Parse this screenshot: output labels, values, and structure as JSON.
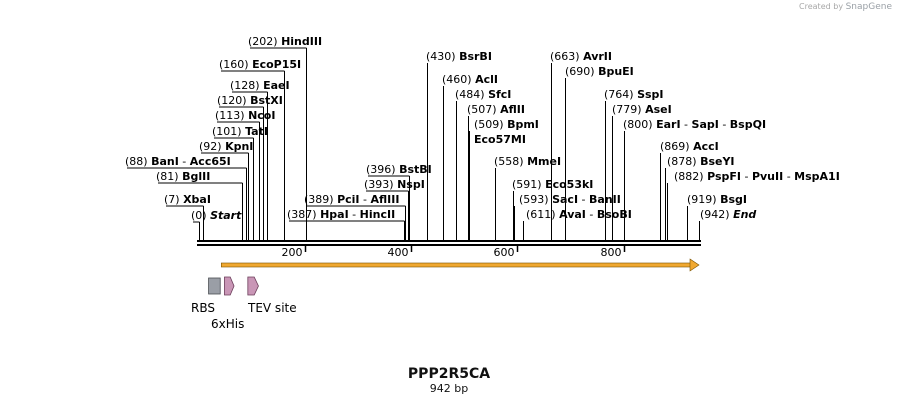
{
  "branding": {
    "created_by": "Created by",
    "product": "SnapGene"
  },
  "sequence": {
    "name": "PPP2R5CA",
    "length_label": "942 bp",
    "length_bp": 942
  },
  "sites": [
    {
      "pos": "(0)",
      "bp": 0,
      "names": [
        "Start"
      ],
      "italic": true
    },
    {
      "pos": "(7)",
      "bp": 7,
      "names": [
        "XbaI"
      ]
    },
    {
      "pos": "(81)",
      "bp": 81,
      "names": [
        "BglII"
      ]
    },
    {
      "pos": "(88)",
      "bp": 88,
      "names": [
        "BanI",
        "Acc65I"
      ]
    },
    {
      "pos": "(92)",
      "bp": 92,
      "names": [
        "KpnI"
      ]
    },
    {
      "pos": "(101)",
      "bp": 101,
      "names": [
        "TatI"
      ]
    },
    {
      "pos": "(113)",
      "bp": 113,
      "names": [
        "NcoI"
      ]
    },
    {
      "pos": "(120)",
      "bp": 120,
      "names": [
        "BstXI"
      ]
    },
    {
      "pos": "(128)",
      "bp": 128,
      "names": [
        "EaeI"
      ]
    },
    {
      "pos": "(160)",
      "bp": 160,
      "names": [
        "EcoP15I"
      ]
    },
    {
      "pos": "(202)",
      "bp": 202,
      "names": [
        "HindIII"
      ]
    },
    {
      "pos": "(387)",
      "bp": 387,
      "names": [
        "HpaI",
        "HincII"
      ]
    },
    {
      "pos": "(389)",
      "bp": 389,
      "names": [
        "PciI",
        "AflIII"
      ]
    },
    {
      "pos": "(393)",
      "bp": 393,
      "names": [
        "NspI"
      ]
    },
    {
      "pos": "(396)",
      "bp": 396,
      "names": [
        "BstBI"
      ]
    },
    {
      "pos": "(430)",
      "bp": 430,
      "names": [
        "BsrBI"
      ]
    },
    {
      "pos": "(460)",
      "bp": 460,
      "names": [
        "AclI"
      ]
    },
    {
      "pos": "(484)",
      "bp": 484,
      "names": [
        "SfcI"
      ]
    },
    {
      "pos": "(507)",
      "bp": 507,
      "names": [
        "AflII"
      ]
    },
    {
      "pos": "(509)",
      "bp": 509,
      "names": [
        "BpmI"
      ]
    },
    {
      "pos": "",
      "bp": 509,
      "names": [
        "Eco57MI"
      ]
    },
    {
      "pos": "(558)",
      "bp": 558,
      "names": [
        "MmeI"
      ]
    },
    {
      "pos": "(591)",
      "bp": 591,
      "names": [
        "Eco53kI"
      ]
    },
    {
      "pos": "(593)",
      "bp": 593,
      "names": [
        "SacI",
        "BanII"
      ]
    },
    {
      "pos": "(611)",
      "bp": 611,
      "names": [
        "AvaI",
        "BsoBI"
      ]
    },
    {
      "pos": "(663)",
      "bp": 663,
      "names": [
        "AvrII"
      ]
    },
    {
      "pos": "(690)",
      "bp": 690,
      "names": [
        "BpuEI"
      ]
    },
    {
      "pos": "(764)",
      "bp": 764,
      "names": [
        "SspI"
      ]
    },
    {
      "pos": "(779)",
      "bp": 779,
      "names": [
        "AseI"
      ]
    },
    {
      "pos": "(800)",
      "bp": 800,
      "names": [
        "EarI",
        "SapI",
        "BspQI"
      ]
    },
    {
      "pos": "(869)",
      "bp": 869,
      "names": [
        "AccI"
      ]
    },
    {
      "pos": "(878)",
      "bp": 878,
      "names": [
        "BseYI"
      ]
    },
    {
      "pos": "(882)",
      "bp": 882,
      "names": [
        "PspFI",
        "PvuII",
        "MspA1I"
      ]
    },
    {
      "pos": "(919)",
      "bp": 919,
      "names": [
        "BsgI"
      ]
    },
    {
      "pos": "(942)",
      "bp": 942,
      "names": [
        "End"
      ],
      "italic": true
    }
  ],
  "ruler": {
    "ticks": [
      200,
      400,
      600,
      800
    ],
    "labels": [
      "200",
      "400",
      "600",
      "800"
    ]
  },
  "orf": {
    "from_bp": 42,
    "to_bp": 942,
    "color": "#f0a830"
  },
  "features": [
    {
      "label": "RBS",
      "kind": "box",
      "color": "#9a9ea6",
      "bp_from": 18,
      "bp_to": 40
    },
    {
      "label": "6xHis",
      "kind": "arrow",
      "color": "#c996b6",
      "bp_from": 48,
      "bp_to": 66
    },
    {
      "label": "TEV site",
      "kind": "arrow",
      "color": "#c996b6",
      "bp_from": 92,
      "bp_to": 112
    }
  ]
}
